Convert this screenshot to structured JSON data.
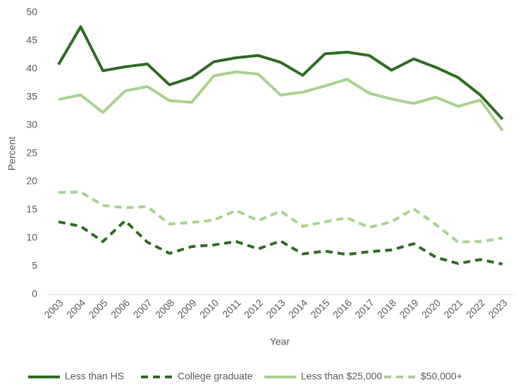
{
  "chart_data": {
    "type": "line",
    "x_label": "Year",
    "y_label": "Percent",
    "categories": [
      "2003",
      "2004",
      "2005",
      "2006",
      "2007",
      "2008",
      "2009",
      "2010",
      "2011",
      "2012",
      "2013",
      "2014",
      "2015",
      "2016",
      "2017",
      "2018",
      "2019",
      "2020",
      "2021",
      "2022",
      "2023"
    ],
    "series": [
      {
        "name": "Less than HS",
        "color": "#2e6b22",
        "dashed": false,
        "values": [
          40.8,
          47.5,
          39.7,
          40.4,
          40.9,
          37.2,
          38.5,
          41.3,
          42.0,
          42.4,
          41.2,
          38.9,
          42.7,
          43.0,
          42.4,
          39.8,
          41.8,
          40.3,
          38.5,
          35.4,
          31.1
        ]
      },
      {
        "name": "College graduate",
        "color": "#2e6b22",
        "dashed": true,
        "values": [
          12.9,
          12.1,
          9.4,
          13.1,
          9.3,
          7.3,
          8.5,
          8.8,
          9.4,
          8.1,
          9.5,
          7.2,
          7.7,
          7.1,
          7.6,
          7.9,
          9.0,
          6.6,
          5.5,
          6.2,
          5.4
        ]
      },
      {
        "name": "Less than $25,000",
        "color": "#a9d18e",
        "dashed": false,
        "values": [
          34.6,
          35.4,
          32.3,
          36.1,
          36.9,
          34.4,
          34.1,
          38.8,
          39.5,
          39.1,
          35.4,
          35.9,
          37.0,
          38.2,
          35.7,
          34.7,
          33.9,
          35.0,
          33.4,
          34.5,
          29.1
        ]
      },
      {
        "name": "$50,000+",
        "color": "#a9d18e",
        "dashed": true,
        "values": [
          18.1,
          18.2,
          15.8,
          15.4,
          15.6,
          12.5,
          12.8,
          13.2,
          14.9,
          13.1,
          14.8,
          12.1,
          12.9,
          13.6,
          11.9,
          12.9,
          15.2,
          12.4,
          9.3,
          9.4,
          10.0
        ]
      }
    ],
    "ylim": [
      0,
      50
    ],
    "yticks": [
      0,
      5,
      10,
      15,
      20,
      25,
      30,
      35,
      40,
      45,
      50
    ],
    "grid": false,
    "legend": "bottom"
  }
}
